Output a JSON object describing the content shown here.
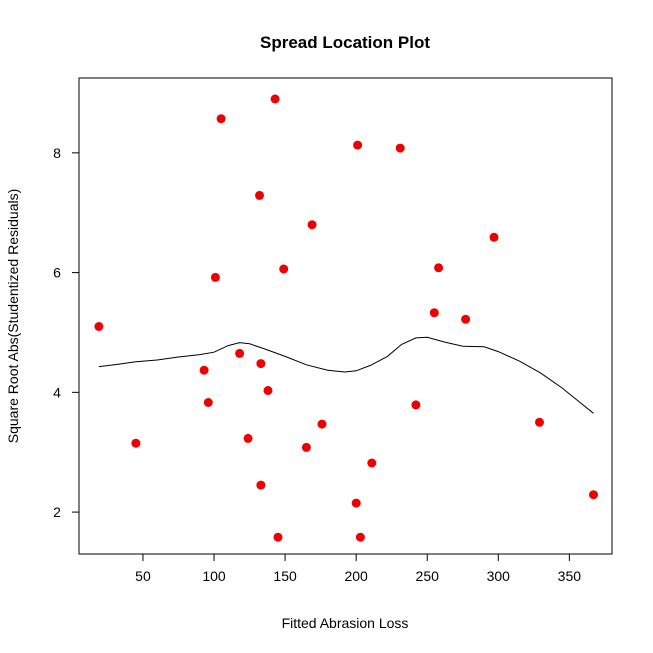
{
  "chart_data": {
    "type": "scatter",
    "title": "Spread Location Plot",
    "xlabel": "Fitted Abrasion Loss",
    "ylabel": "Square Root Abs(Studentized Residuals)",
    "xlim": [
      5,
      380
    ],
    "ylim": [
      1.3,
      9.25
    ],
    "x_ticks": [
      50,
      100,
      150,
      200,
      250,
      300,
      350
    ],
    "y_ticks": [
      2,
      4,
      6,
      8
    ],
    "point_color": "#ee0000",
    "line_color": "#000000",
    "points": [
      {
        "x": 19,
        "y": 5.1
      },
      {
        "x": 45,
        "y": 3.15
      },
      {
        "x": 93,
        "y": 4.37
      },
      {
        "x": 96,
        "y": 3.83
      },
      {
        "x": 101,
        "y": 5.92
      },
      {
        "x": 105,
        "y": 8.57
      },
      {
        "x": 118,
        "y": 4.65
      },
      {
        "x": 124,
        "y": 3.23
      },
      {
        "x": 132,
        "y": 7.29
      },
      {
        "x": 133,
        "y": 4.48
      },
      {
        "x": 133,
        "y": 2.45
      },
      {
        "x": 138,
        "y": 4.03
      },
      {
        "x": 143,
        "y": 8.9
      },
      {
        "x": 145,
        "y": 1.58
      },
      {
        "x": 149,
        "y": 6.06
      },
      {
        "x": 165,
        "y": 3.08
      },
      {
        "x": 169,
        "y": 6.8
      },
      {
        "x": 176,
        "y": 3.47
      },
      {
        "x": 200,
        "y": 2.15
      },
      {
        "x": 201,
        "y": 8.13
      },
      {
        "x": 203,
        "y": 1.58
      },
      {
        "x": 211,
        "y": 2.82
      },
      {
        "x": 231,
        "y": 8.08
      },
      {
        "x": 242,
        "y": 3.79
      },
      {
        "x": 255,
        "y": 5.33
      },
      {
        "x": 258,
        "y": 6.08
      },
      {
        "x": 277,
        "y": 5.22
      },
      {
        "x": 297,
        "y": 6.59
      },
      {
        "x": 329,
        "y": 3.5
      },
      {
        "x": 367,
        "y": 2.29
      }
    ],
    "smooth_line": [
      {
        "x": 19,
        "y": 4.43
      },
      {
        "x": 30,
        "y": 4.46
      },
      {
        "x": 45,
        "y": 4.51
      },
      {
        "x": 60,
        "y": 4.54
      },
      {
        "x": 75,
        "y": 4.59
      },
      {
        "x": 90,
        "y": 4.63
      },
      {
        "x": 100,
        "y": 4.67
      },
      {
        "x": 110,
        "y": 4.78
      },
      {
        "x": 118,
        "y": 4.83
      },
      {
        "x": 125,
        "y": 4.81
      },
      {
        "x": 135,
        "y": 4.73
      },
      {
        "x": 150,
        "y": 4.6
      },
      {
        "x": 165,
        "y": 4.46
      },
      {
        "x": 180,
        "y": 4.37
      },
      {
        "x": 192,
        "y": 4.34
      },
      {
        "x": 200,
        "y": 4.36
      },
      {
        "x": 210,
        "y": 4.45
      },
      {
        "x": 222,
        "y": 4.6
      },
      {
        "x": 232,
        "y": 4.8
      },
      {
        "x": 242,
        "y": 4.91
      },
      {
        "x": 250,
        "y": 4.92
      },
      {
        "x": 262,
        "y": 4.84
      },
      {
        "x": 275,
        "y": 4.77
      },
      {
        "x": 290,
        "y": 4.76
      },
      {
        "x": 300,
        "y": 4.68
      },
      {
        "x": 315,
        "y": 4.52
      },
      {
        "x": 330,
        "y": 4.32
      },
      {
        "x": 345,
        "y": 4.07
      },
      {
        "x": 357,
        "y": 3.84
      },
      {
        "x": 367,
        "y": 3.65
      }
    ]
  }
}
